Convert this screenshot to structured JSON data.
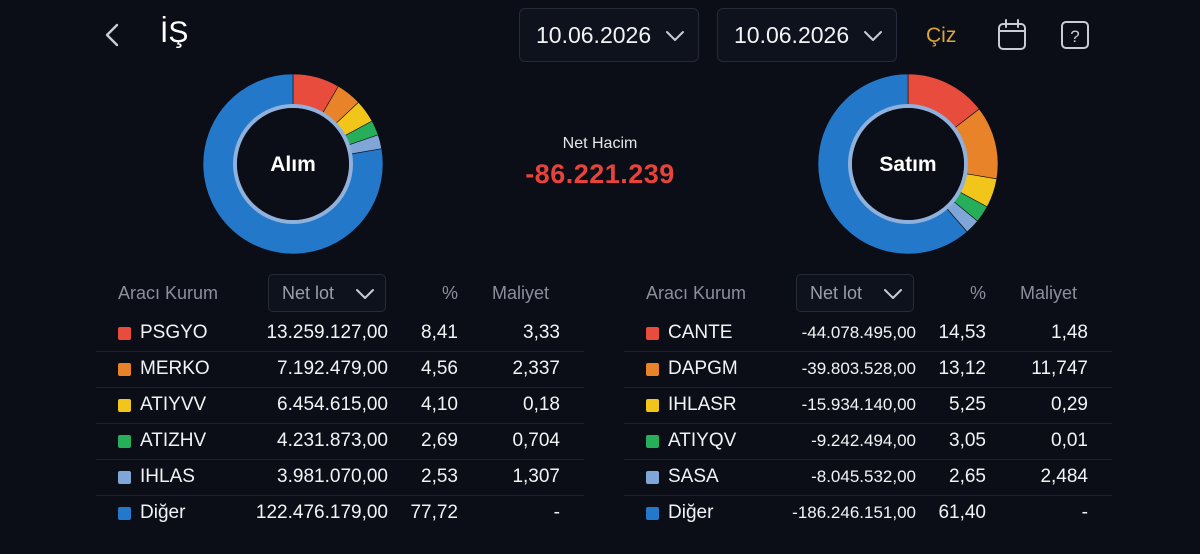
{
  "header": {
    "title": "İŞ",
    "date_start": "10.06.2026",
    "date_end": "10.06.2026",
    "draw_label": "Çiz",
    "icons": [
      "chevron-left-icon",
      "chevron-down-icon",
      "calendar-icon",
      "help-icon"
    ]
  },
  "summary": {
    "net_volume_label": "Net Hacim",
    "net_volume_value": "-86.221.239",
    "net_volume_color": "#e8433a"
  },
  "colors": {
    "red": "#e84c3d",
    "orange": "#e8832a",
    "yellow": "#f2c51a",
    "green": "#27ae5a",
    "lightblue": "#7fa6d6",
    "blue": "#2478c9",
    "accent": "#d9a63b"
  },
  "chart_data": [
    {
      "type": "pie",
      "center_label": "Alım",
      "categories": [
        "PSGYO",
        "MERKO",
        "ATIYVV",
        "ATIZHV",
        "IHLAS",
        "Diğer"
      ],
      "values": [
        8.41,
        4.56,
        4.1,
        2.69,
        2.53,
        77.72
      ],
      "colors": [
        "#e84c3d",
        "#e8832a",
        "#f2c51a",
        "#27ae5a",
        "#7fa6d6",
        "#2478c9"
      ]
    },
    {
      "type": "pie",
      "center_label": "Satım",
      "categories": [
        "CANTE",
        "DAPGM",
        "IHLASR",
        "ATIYQV",
        "SASA",
        "Diğer"
      ],
      "values": [
        14.53,
        13.12,
        5.25,
        3.05,
        2.65,
        61.4
      ],
      "colors": [
        "#e84c3d",
        "#e8832a",
        "#f2c51a",
        "#27ae5a",
        "#7fa6d6",
        "#2478c9"
      ]
    }
  ],
  "buy_table": {
    "headers": {
      "broker": "Aracı Kurum",
      "sort": "Net lot",
      "pct": "%",
      "cost": "Maliyet"
    },
    "rows": [
      {
        "name": "PSGYO",
        "lot": "13.259.127,00",
        "pct": "8,41",
        "cost": "3,33",
        "color": "#e84c3d"
      },
      {
        "name": "MERKO",
        "lot": "7.192.479,00",
        "pct": "4,56",
        "cost": "2,337",
        "color": "#e8832a"
      },
      {
        "name": "ATIYVV",
        "lot": "6.454.615,00",
        "pct": "4,10",
        "cost": "0,18",
        "color": "#f2c51a"
      },
      {
        "name": "ATIZHV",
        "lot": "4.231.873,00",
        "pct": "2,69",
        "cost": "0,704",
        "color": "#27ae5a"
      },
      {
        "name": "IHLAS",
        "lot": "3.981.070,00",
        "pct": "2,53",
        "cost": "1,307",
        "color": "#7fa6d6"
      },
      {
        "name": "Diğer",
        "lot": "122.476.179,00",
        "pct": "77,72",
        "cost": "-",
        "color": "#2478c9"
      }
    ]
  },
  "sell_table": {
    "headers": {
      "broker": "Aracı Kurum",
      "sort": "Net lot",
      "pct": "%",
      "cost": "Maliyet"
    },
    "rows": [
      {
        "name": "CANTE",
        "lot": "-44.078.495,00",
        "pct": "14,53",
        "cost": "1,48",
        "color": "#e84c3d"
      },
      {
        "name": "DAPGM",
        "lot": "-39.803.528,00",
        "pct": "13,12",
        "cost": "11,747",
        "color": "#e8832a"
      },
      {
        "name": "IHLASR",
        "lot": "-15.934.140,00",
        "pct": "5,25",
        "cost": "0,29",
        "color": "#f2c51a"
      },
      {
        "name": "ATIYQV",
        "lot": "-9.242.494,00",
        "pct": "3,05",
        "cost": "0,01",
        "color": "#27ae5a"
      },
      {
        "name": "SASA",
        "lot": "-8.045.532,00",
        "pct": "2,65",
        "cost": "2,484",
        "color": "#7fa6d6"
      },
      {
        "name": "Diğer",
        "lot": "-186.246.151,00",
        "pct": "61,40",
        "cost": "-",
        "color": "#2478c9"
      }
    ]
  }
}
